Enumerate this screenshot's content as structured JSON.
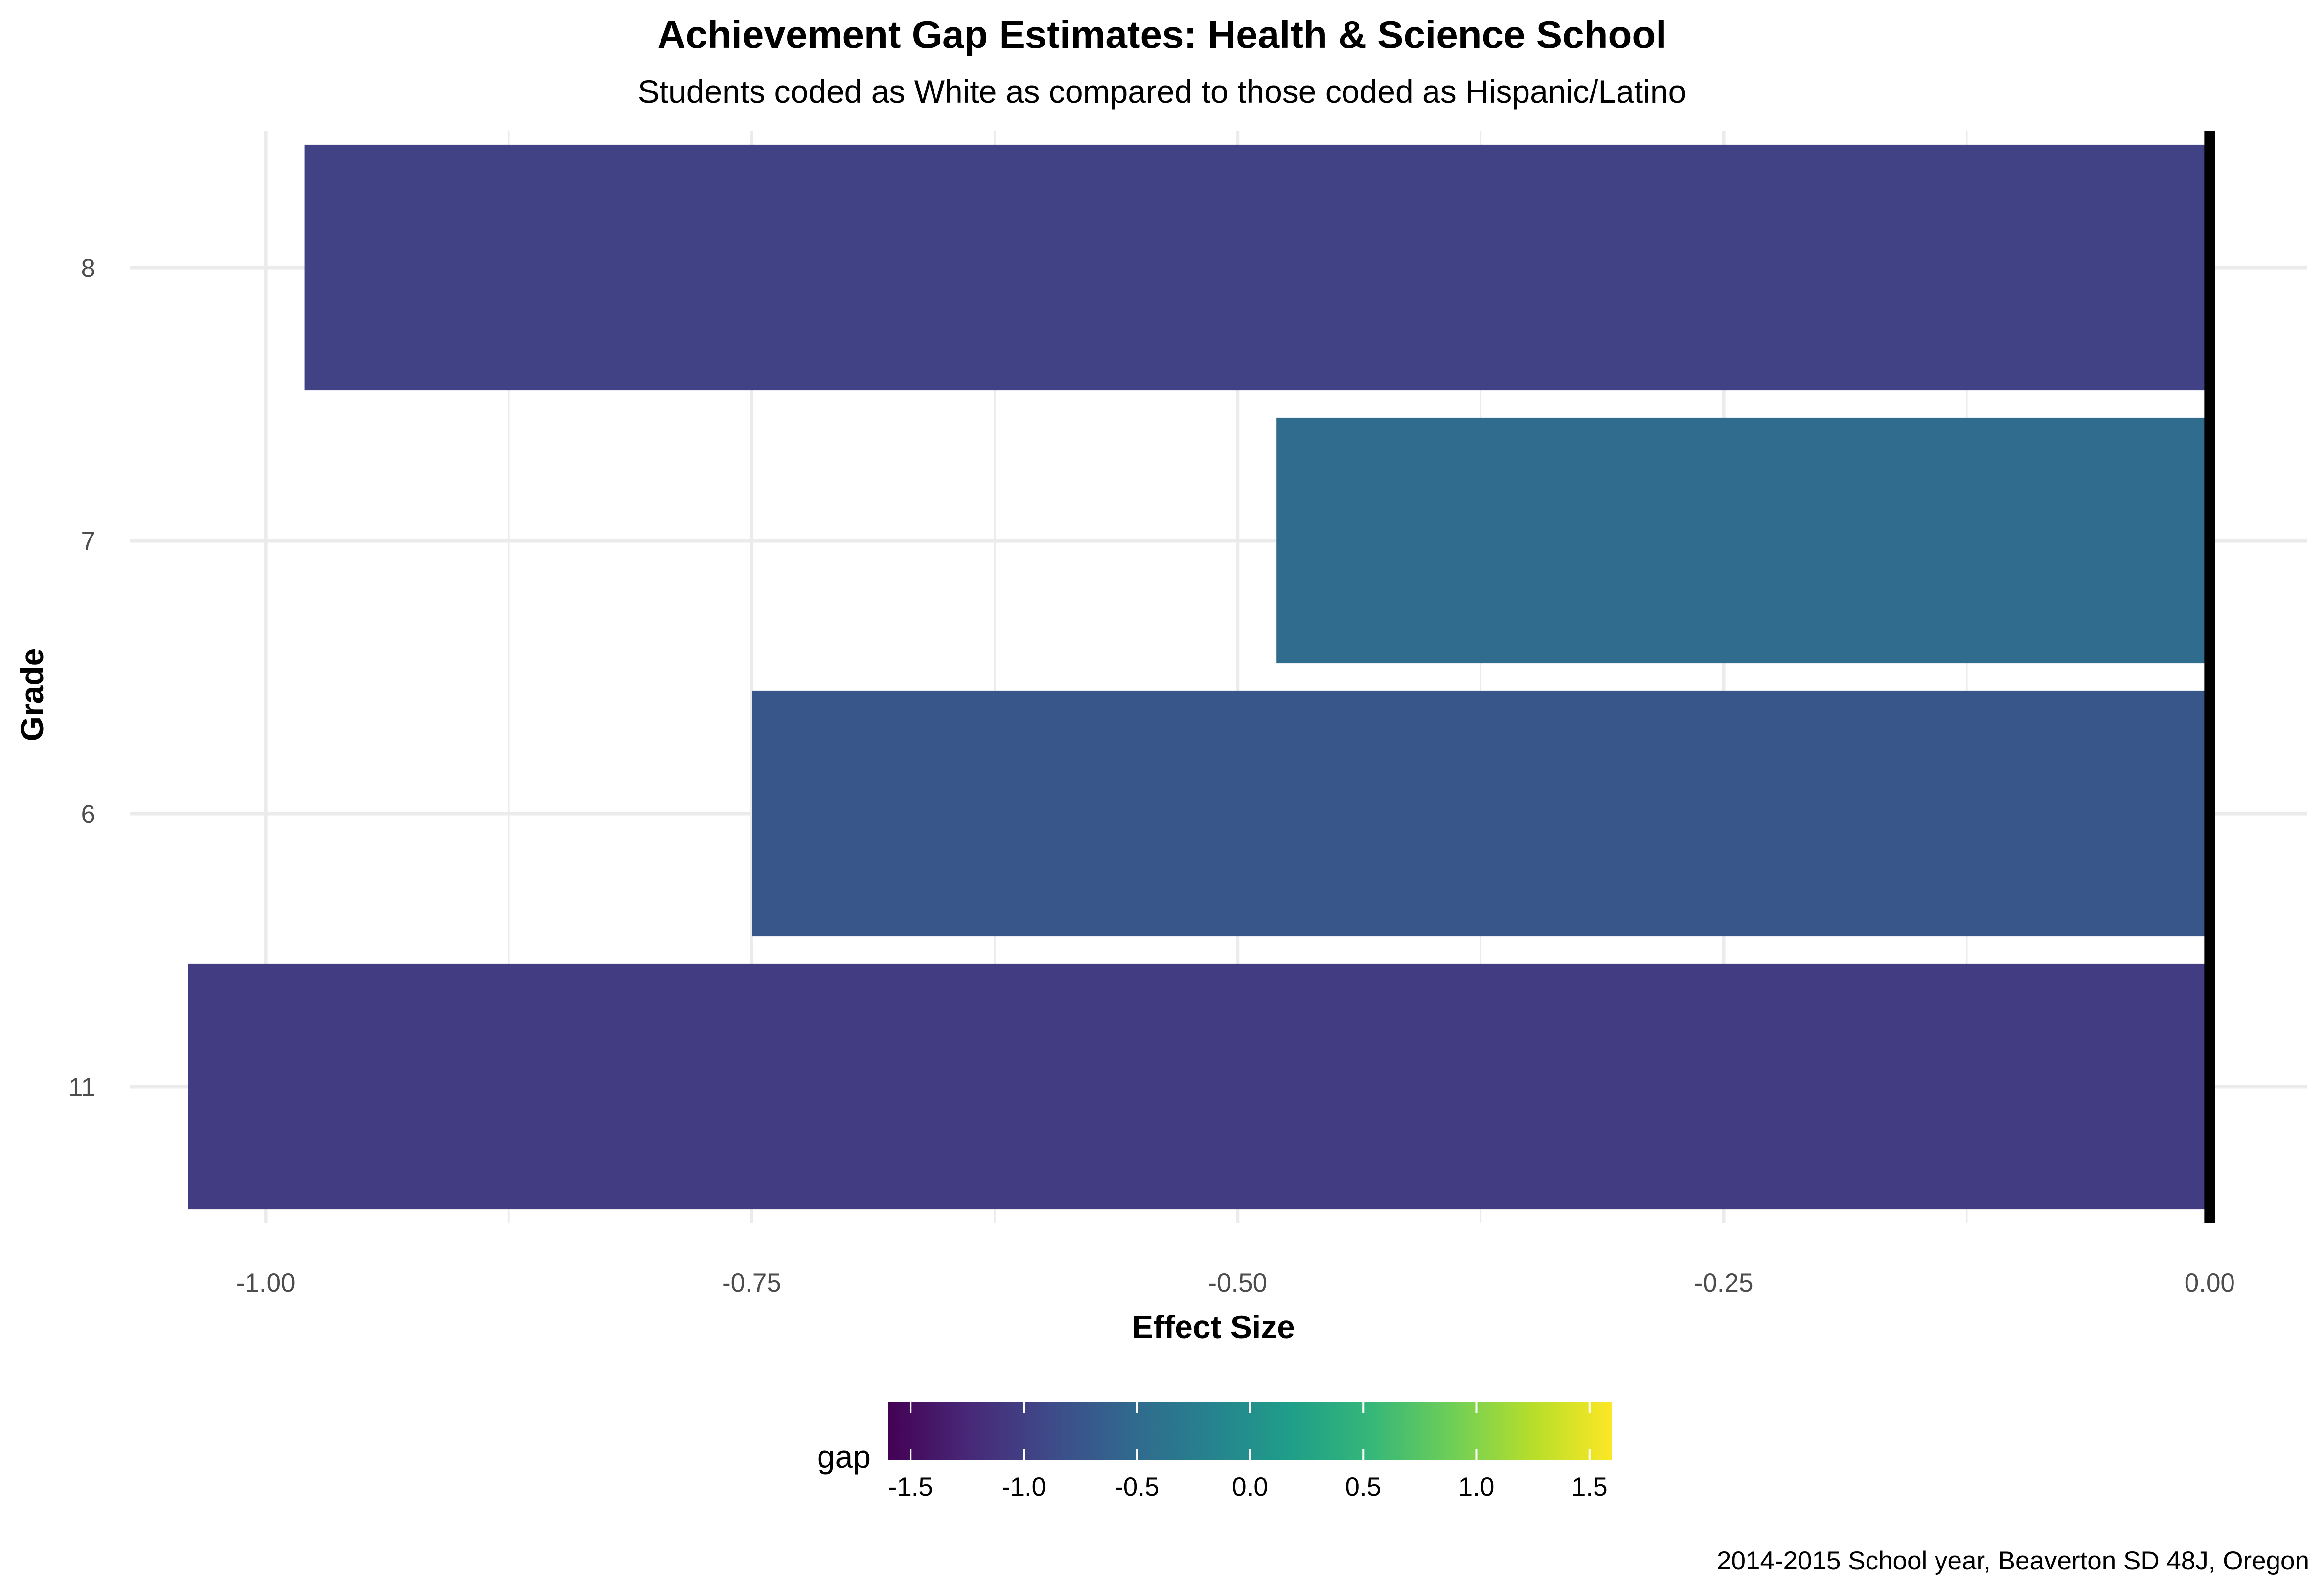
{
  "chart_data": {
    "type": "bar",
    "orientation": "horizontal",
    "title": "Achievement Gap Estimates: Health & Science School",
    "subtitle": "Students coded as White as compared to those coded as Hispanic/Latino",
    "xlabel": "Effect Size",
    "ylabel": "Grade",
    "caption": "2014-2015 School year, Beaverton SD 48J, Oregon",
    "categories": [
      "8",
      "7",
      "6",
      "11"
    ],
    "values": [
      -0.98,
      -0.48,
      -0.75,
      -1.04
    ],
    "xlim": [
      -1.07,
      0.05
    ],
    "xticks": [
      -1.0,
      -0.75,
      -0.5,
      -0.25,
      0.0
    ],
    "xtick_labels": [
      "-1.00",
      "-0.75",
      "-0.50",
      "-0.25",
      "0.00"
    ],
    "grid": true,
    "reference_line": 0,
    "legend": {
      "title": "gap",
      "placement": "bottom",
      "type": "colorbar",
      "palette": "viridis",
      "range": [
        -1.6,
        1.6
      ],
      "ticks": [
        -1.5,
        -1.0,
        -0.5,
        0.0,
        0.5,
        1.0,
        1.5
      ],
      "tick_labels": [
        "-1.5",
        "-1.0",
        "-0.5",
        "0.0",
        "0.5",
        "1.0",
        "1.5"
      ],
      "stops": [
        "#440154",
        "#482878",
        "#3e4a89",
        "#31688e",
        "#26828e",
        "#1f9e89",
        "#35b779",
        "#6ece58",
        "#b5de2b",
        "#fde725"
      ]
    }
  }
}
